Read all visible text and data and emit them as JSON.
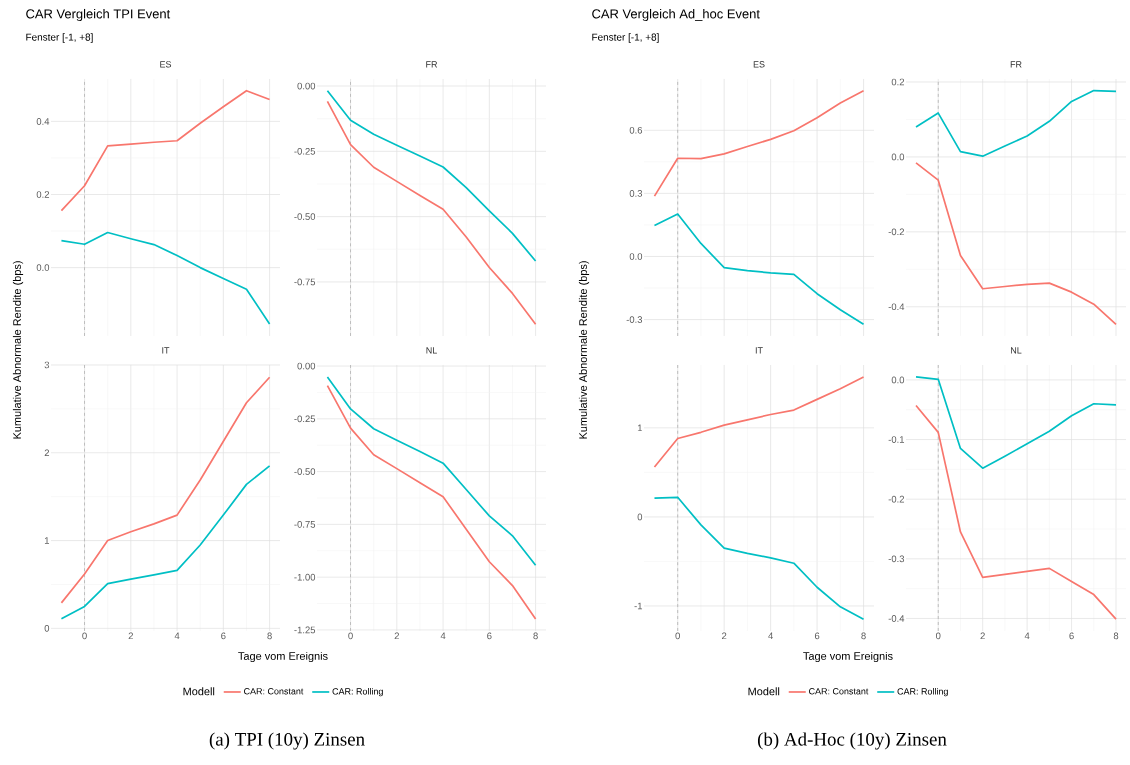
{
  "chart_data": [
    {
      "type": "line",
      "title": "ES",
      "annotations": [
        "CAR Vergleich TPI Event",
        "Fenster [-1, +8]"
      ],
      "ylabel": "Kumulative Abnormale Rendite (bps)",
      "x": [
        -1,
        0,
        1,
        2,
        3,
        4,
        5,
        6,
        7,
        8
      ],
      "xlim": [
        -1.45,
        8.45
      ],
      "xticks": [
        0,
        2,
        4,
        6,
        8
      ],
      "ylim": [
        -0.187,
        0.516
      ],
      "yticks": [
        {
          "value": 0,
          "label": "0.0"
        },
        0.2,
        0.4
      ],
      "grid": true,
      "tick_labels": "y",
      "ref_lines": [
        {
          "axis": "x",
          "value": 0,
          "color": "#b0b0b0",
          "line_style": "dashed"
        }
      ],
      "series": [
        {
          "color": "#f8766d",
          "values": [
            0.156,
            0.224,
            0.333,
            0.338,
            0.343,
            0.347,
            0.395,
            0.44,
            0.484,
            0.46
          ]
        },
        {
          "color": "#00bfc4",
          "values": [
            0.074,
            0.064,
            0.096,
            0.079,
            0.063,
            0.033,
            0.0,
            -0.03,
            -0.059,
            -0.154
          ]
        }
      ]
    },
    {
      "type": "line",
      "title": "FR",
      "x": [
        -1,
        0,
        1,
        2,
        3,
        4,
        5,
        6,
        7,
        8
      ],
      "xlim": [
        -1.45,
        8.45
      ],
      "xticks": [
        0,
        2,
        4,
        6,
        8
      ],
      "ylim": [
        -0.957,
        0.027
      ],
      "yticks": [
        {
          "value": -0.75,
          "label": "-0.75"
        },
        {
          "value": -0.5,
          "label": "-0.50"
        },
        {
          "value": -0.25,
          "label": "-0.25"
        },
        {
          "value": 0,
          "label": "0.00"
        }
      ],
      "grid": true,
      "tick_labels": "y",
      "ref_lines": [
        {
          "axis": "x",
          "value": 0,
          "color": "#b0b0b0",
          "line_style": "dashed"
        }
      ],
      "series": [
        {
          "color": "#f8766d",
          "values": [
            -0.059,
            -0.224,
            -0.311,
            -0.365,
            -0.419,
            -0.472,
            -0.578,
            -0.695,
            -0.794,
            -0.912
          ]
        },
        {
          "color": "#00bfc4",
          "values": [
            -0.018,
            -0.131,
            -0.185,
            -0.227,
            -0.268,
            -0.31,
            -0.389,
            -0.478,
            -0.564,
            -0.67
          ]
        }
      ]
    },
    {
      "type": "line",
      "title": "IT",
      "annotations": [
        "(a) TPI (10y) Zinsen"
      ],
      "xlabel": "Tage vom Ereignis",
      "legend": "bottom",
      "legend_title": "Modell",
      "x": [
        -1,
        0,
        1,
        2,
        3,
        4,
        5,
        6,
        7,
        8
      ],
      "xlim": [
        -1.45,
        8.45
      ],
      "xticks": [
        0,
        2,
        4,
        6,
        8
      ],
      "ylim": [
        -0.03,
        3.0
      ],
      "yticks": [
        0,
        1,
        2,
        3
      ],
      "grid": true,
      "ref_lines": [
        {
          "axis": "x",
          "value": 0,
          "color": "#b0b0b0",
          "line_style": "dashed"
        }
      ],
      "series": [
        {
          "name": "CAR: Constant",
          "color": "#f8766d",
          "values": [
            0.29,
            0.62,
            1.0,
            1.1,
            1.19,
            1.29,
            1.69,
            2.13,
            2.57,
            2.86
          ]
        },
        {
          "name": "CAR: Rolling",
          "color": "#00bfc4",
          "values": [
            0.11,
            0.25,
            0.51,
            0.56,
            0.61,
            0.66,
            0.95,
            1.29,
            1.64,
            1.85
          ]
        }
      ]
    },
    {
      "type": "line",
      "title": "NL",
      "x": [
        -1,
        0,
        1,
        2,
        3,
        4,
        5,
        6,
        7,
        8
      ],
      "xlim": [
        -1.45,
        8.45
      ],
      "xticks": [
        0,
        2,
        4,
        6,
        8
      ],
      "ylim": [
        -1.255,
        0.005
      ],
      "yticks": [
        {
          "value": -1.25,
          "label": "-1.25"
        },
        {
          "value": -1,
          "label": "-1.00"
        },
        {
          "value": -0.75,
          "label": "-0.75"
        },
        {
          "value": -0.5,
          "label": "-0.50"
        },
        {
          "value": -0.25,
          "label": "-0.25"
        },
        {
          "value": 0,
          "label": "0.00"
        }
      ],
      "grid": true,
      "ref_lines": [
        {
          "axis": "x",
          "value": 0,
          "color": "#b0b0b0",
          "line_style": "dashed"
        }
      ],
      "series": [
        {
          "color": "#f8766d",
          "values": [
            -0.093,
            -0.294,
            -0.42,
            -0.486,
            -0.553,
            -0.619,
            -0.773,
            -0.927,
            -1.04,
            -1.198
          ]
        },
        {
          "color": "#00bfc4",
          "values": [
            -0.052,
            -0.203,
            -0.297,
            -0.351,
            -0.405,
            -0.46,
            -0.585,
            -0.71,
            -0.804,
            -0.944
          ]
        }
      ]
    },
    {
      "type": "line",
      "title": "ES",
      "annotations": [
        "CAR Vergleich Ad_hoc Event",
        "Fenster [-1, +8]"
      ],
      "ylabel": "Kumulative Abnormale Rendite (bps)",
      "x": [
        -1,
        0,
        1,
        2,
        3,
        4,
        5,
        6,
        7,
        8
      ],
      "xlim": [
        -1.45,
        8.45
      ],
      "xticks": [
        0,
        2,
        4,
        6,
        8
      ],
      "ylim": [
        -0.378,
        0.844
      ],
      "yticks": [
        {
          "value": -0.3,
          "label": "-0.3"
        },
        {
          "value": 0,
          "label": "0.0"
        },
        0.3,
        0.6
      ],
      "grid": true,
      "tick_labels": "y",
      "ref_lines": [
        {
          "axis": "x",
          "value": 0,
          "color": "#b0b0b0",
          "line_style": "dashed"
        }
      ],
      "series": [
        {
          "color": "#f8766d",
          "values": [
            0.287,
            0.467,
            0.465,
            0.488,
            0.523,
            0.557,
            0.598,
            0.66,
            0.73,
            0.788
          ]
        },
        {
          "color": "#00bfc4",
          "values": [
            0.147,
            0.202,
            0.062,
            -0.053,
            -0.067,
            -0.078,
            -0.085,
            -0.177,
            -0.253,
            -0.322
          ]
        }
      ]
    },
    {
      "type": "line",
      "title": "FR",
      "x": [
        -1,
        0,
        1,
        2,
        3,
        4,
        5,
        6,
        7,
        8
      ],
      "xlim": [
        -1.45,
        8.45
      ],
      "xticks": [
        0,
        2,
        4,
        6,
        8
      ],
      "ylim": [
        -0.478,
        0.208
      ],
      "yticks": [
        -0.4,
        -0.2,
        {
          "value": 0,
          "label": "0.0"
        },
        0.2
      ],
      "grid": true,
      "tick_labels": "y",
      "ref_lines": [
        {
          "axis": "x",
          "value": 0,
          "color": "#b0b0b0",
          "line_style": "dashed"
        }
      ],
      "series": [
        {
          "color": "#f8766d",
          "values": [
            -0.016,
            -0.062,
            -0.263,
            -0.352,
            -0.346,
            -0.34,
            -0.337,
            -0.361,
            -0.393,
            -0.447
          ]
        },
        {
          "color": "#00bfc4",
          "values": [
            0.08,
            0.117,
            0.014,
            0.002,
            0.029,
            0.056,
            0.095,
            0.148,
            0.177,
            0.175
          ]
        }
      ]
    },
    {
      "type": "line",
      "title": "IT",
      "annotations": [
        "(b) Ad-Hoc (10y) Zinsen"
      ],
      "xlabel": "Tage vom Ereignis",
      "legend": "bottom",
      "legend_title": "Modell",
      "x": [
        -1,
        0,
        1,
        2,
        3,
        4,
        5,
        6,
        7,
        8
      ],
      "xlim": [
        -1.45,
        8.45
      ],
      "xticks": [
        0,
        2,
        4,
        6,
        8
      ],
      "ylim": [
        -1.281,
        1.706
      ],
      "yticks": [
        -1,
        0,
        1
      ],
      "grid": true,
      "ref_lines": [
        {
          "axis": "x",
          "value": 0,
          "color": "#b0b0b0",
          "line_style": "dashed"
        }
      ],
      "series": [
        {
          "name": "CAR: Constant",
          "color": "#f8766d",
          "values": [
            0.56,
            0.88,
            0.95,
            1.03,
            1.09,
            1.15,
            1.2,
            1.32,
            1.44,
            1.57
          ]
        },
        {
          "name": "CAR: Rolling",
          "color": "#00bfc4",
          "values": [
            0.21,
            0.22,
            -0.09,
            -0.35,
            -0.41,
            -0.46,
            -0.52,
            -0.79,
            -1.01,
            -1.15
          ]
        }
      ]
    },
    {
      "type": "line",
      "title": "NL",
      "x": [
        -1,
        0,
        1,
        2,
        3,
        4,
        5,
        6,
        7,
        8
      ],
      "xlim": [
        -1.45,
        8.45
      ],
      "xticks": [
        0,
        2,
        4,
        6,
        8
      ],
      "ylim": [
        -0.421,
        0.025
      ],
      "yticks": [
        -0.4,
        -0.3,
        -0.2,
        -0.1,
        {
          "value": 0,
          "label": "0.0"
        }
      ],
      "grid": true,
      "ref_lines": [
        {
          "axis": "x",
          "value": 0,
          "color": "#b0b0b0",
          "line_style": "dashed"
        }
      ],
      "series": [
        {
          "color": "#f8766d",
          "values": [
            -0.043,
            -0.088,
            -0.255,
            -0.331,
            -0.326,
            -0.321,
            -0.316,
            -0.338,
            -0.36,
            -0.401
          ]
        },
        {
          "color": "#00bfc4",
          "values": [
            0.005,
            0.001,
            -0.115,
            -0.148,
            -0.128,
            -0.107,
            -0.086,
            -0.06,
            -0.04,
            -0.042
          ]
        }
      ]
    }
  ]
}
